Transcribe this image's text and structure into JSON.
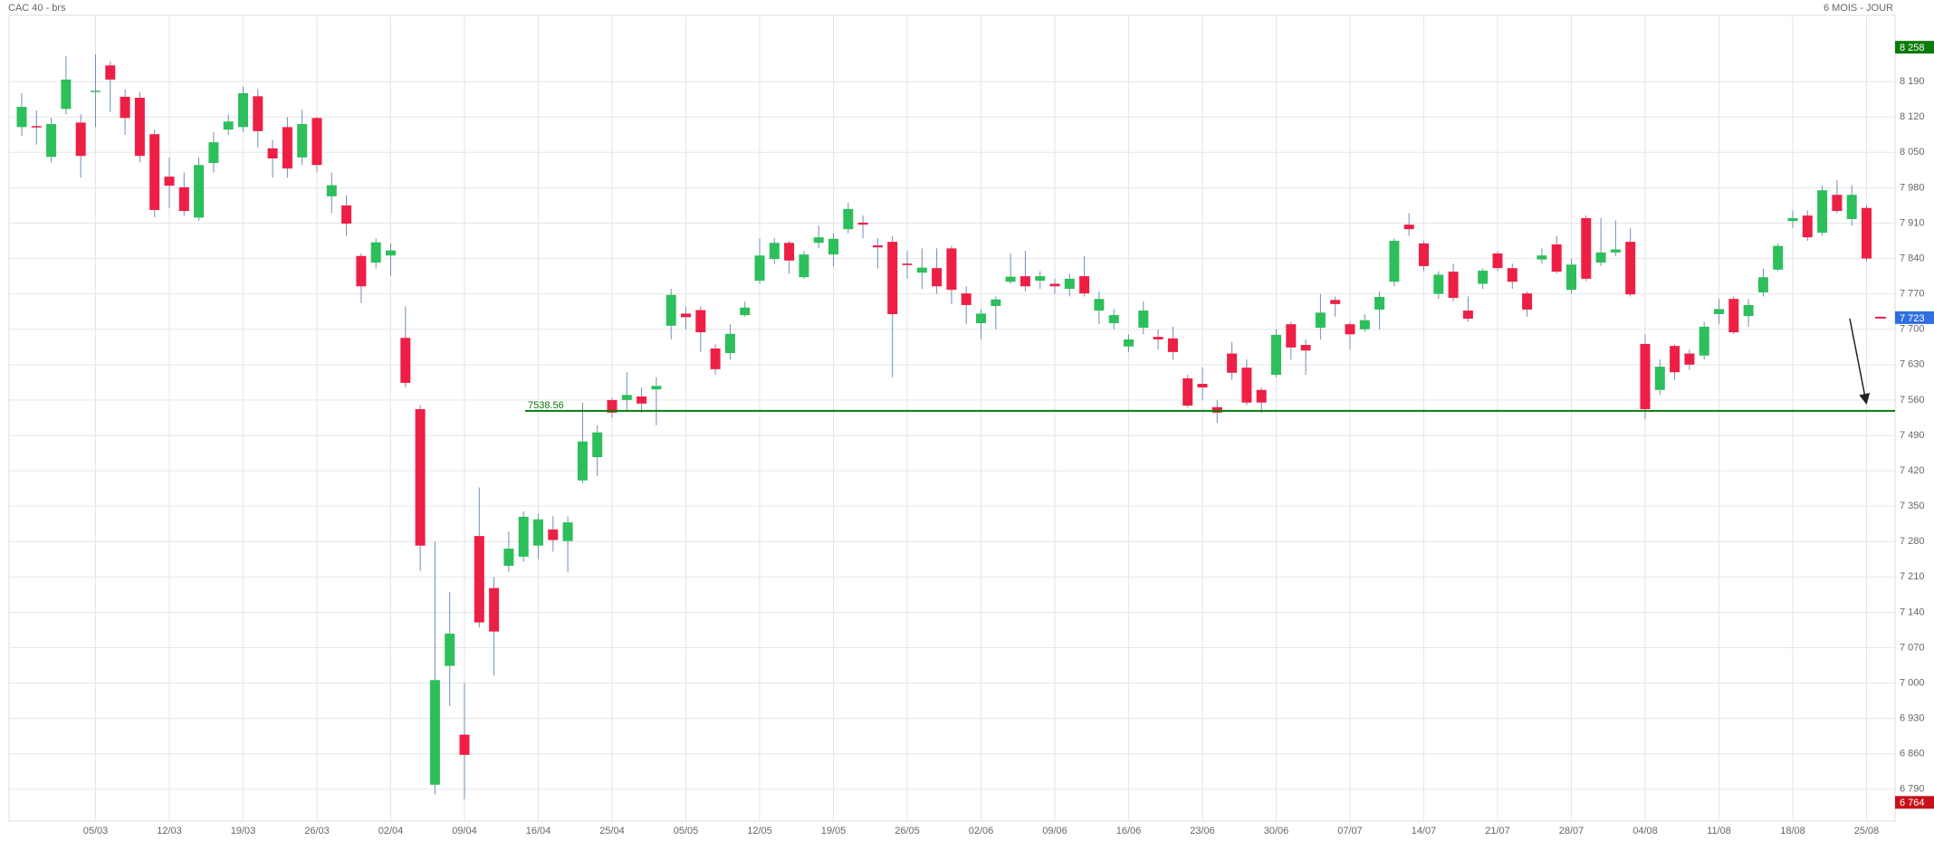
{
  "chart_data": {
    "type": "candlestick",
    "title": "CAC 40 - brs",
    "subtitle": "6 MOIS - JOUR",
    "up_color": "#2dbf5b",
    "down_color": "#ee1f45",
    "wick_color": "#6f8fb5",
    "grid": true,
    "categories": [
      null,
      null,
      null,
      null,
      null,
      "05/03",
      null,
      null,
      null,
      null,
      "12/03",
      null,
      null,
      null,
      null,
      "19/03",
      null,
      null,
      null,
      null,
      "26/03",
      null,
      null,
      null,
      null,
      "02/04",
      null,
      null,
      null,
      null,
      "09/04",
      null,
      null,
      null,
      null,
      "16/04",
      null,
      null,
      null,
      null,
      "25/04",
      null,
      null,
      null,
      null,
      "05/05",
      null,
      null,
      null,
      null,
      "12/05",
      null,
      null,
      null,
      null,
      "19/05",
      null,
      null,
      null,
      null,
      "26/05",
      null,
      null,
      null,
      null,
      "02/06",
      null,
      null,
      null,
      null,
      "09/06",
      null,
      null,
      null,
      null,
      "16/06",
      null,
      null,
      null,
      null,
      "23/06",
      null,
      null,
      null,
      null,
      "30/06",
      null,
      null,
      null,
      null,
      "07/07",
      null,
      null,
      null,
      null,
      "14/07",
      null,
      null,
      null,
      null,
      "21/07",
      null,
      null,
      null,
      null,
      "28/07",
      null,
      null,
      null,
      null,
      "04/08",
      null,
      null,
      null,
      null,
      "11/08",
      null,
      null,
      null,
      null,
      "18/08",
      null,
      null,
      null,
      null,
      "25/08"
    ],
    "open": [
      8100,
      8102,
      8041,
      8136,
      8109,
      8170,
      8222,
      8160,
      8158,
      8086,
      8002,
      7981,
      7921,
      8029,
      8095,
      8100,
      8161,
      8058,
      8100,
      8040,
      8118,
      7963,
      7945,
      7845,
      7832,
      7846,
      7683,
      7542,
      6799,
      7034,
      6898,
      7291,
      7188,
      7232,
      7250,
      7272,
      7304,
      7281,
      7401,
      7447,
      7560,
      7560,
      7567,
      7581,
      7707,
      7731,
      7738,
      7662,
      7653,
      7728,
      7796,
      7839,
      7871,
      7803,
      7871,
      7848,
      7898,
      7911,
      7866,
      7873,
      7830,
      7812,
      7821,
      7860,
      7771,
      7712,
      7746,
      7794,
      7805,
      7796,
      7790,
      7780,
      7805,
      7737,
      7712,
      7666,
      7703,
      7685,
      7682,
      7603,
      7592,
      7546,
      7652,
      7624,
      7580,
      7610,
      7710,
      7669,
      7703,
      7758,
      7710,
      7700,
      7739,
      7794,
      7907,
      7870,
      7770,
      7814,
      7737,
      7790,
      7850,
      7821,
      7771,
      7838,
      7868,
      7778,
      7920,
      7832,
      7852,
      7873,
      7671,
      7580,
      7667,
      7652,
      7648,
      7730,
      7760,
      7726,
      7773,
      7818,
      7914,
      7925,
      7891,
      7966,
      7918,
      7940
    ],
    "high": [
      8167,
      8133,
      8118,
      8240,
      8125,
      8244,
      8230,
      8175,
      8170,
      8095,
      8040,
      8010,
      8040,
      8090,
      8125,
      8180,
      8175,
      8075,
      8120,
      8135,
      8120,
      8010,
      7965,
      7850,
      7880,
      7870,
      7745,
      7550,
      7280,
      7180,
      7000,
      7387,
      7210,
      7300,
      7340,
      7335,
      7330,
      7330,
      7555,
      7510,
      7565,
      7615,
      7585,
      7605,
      7780,
      7745,
      7745,
      7670,
      7710,
      7755,
      7880,
      7880,
      7875,
      7855,
      7905,
      7890,
      7950,
      7925,
      7880,
      7885,
      7855,
      7860,
      7860,
      7865,
      7785,
      7740,
      7765,
      7850,
      7855,
      7815,
      7800,
      7810,
      7845,
      7775,
      7740,
      7690,
      7755,
      7700,
      7705,
      7610,
      7625,
      7560,
      7675,
      7640,
      7585,
      7700,
      7715,
      7680,
      7770,
      7765,
      7715,
      7730,
      7775,
      7880,
      7930,
      7875,
      7815,
      7830,
      7765,
      7820,
      7855,
      7830,
      7775,
      7860,
      7885,
      7840,
      7925,
      7920,
      7915,
      7900,
      7690,
      7640,
      7670,
      7660,
      7715,
      7760,
      7765,
      7760,
      7820,
      7870,
      7935,
      7935,
      7985,
      7995,
      7985,
      7945
    ],
    "low": [
      8083,
      8065,
      8030,
      8125,
      8000,
      8100,
      8130,
      8085,
      8030,
      7922,
      7940,
      7925,
      7915,
      8010,
      8085,
      8090,
      8060,
      8000,
      8000,
      8025,
      8010,
      7930,
      7885,
      7752,
      7820,
      7805,
      7585,
      7222,
      6780,
      6955,
      6770,
      7110,
      7015,
      7220,
      7240,
      7245,
      7260,
      7220,
      7395,
      7410,
      7525,
      7540,
      7535,
      7510,
      7680,
      7700,
      7655,
      7610,
      7640,
      7725,
      7790,
      7830,
      7810,
      7800,
      7860,
      7825,
      7890,
      7880,
      7820,
      7605,
      7800,
      7780,
      7770,
      7750,
      7710,
      7680,
      7700,
      7790,
      7775,
      7780,
      7770,
      7765,
      7765,
      7710,
      7700,
      7655,
      7690,
      7660,
      7640,
      7545,
      7560,
      7515,
      7600,
      7550,
      7535,
      7605,
      7640,
      7610,
      7680,
      7725,
      7660,
      7695,
      7700,
      7785,
      7885,
      7815,
      7760,
      7755,
      7715,
      7780,
      7815,
      7780,
      7725,
      7830,
      7810,
      7770,
      7795,
      7825,
      7845,
      7765,
      7522,
      7570,
      7600,
      7620,
      7640,
      7710,
      7690,
      7705,
      7765,
      7815,
      7900,
      7875,
      7885,
      7930,
      7905,
      7835
    ],
    "close": [
      8140,
      8100,
      8106,
      8194,
      8043,
      8172,
      8194,
      8118,
      8043,
      7936,
      7984,
      7934,
      8025,
      8070,
      8111,
      8167,
      8092,
      8038,
      8018,
      8106,
      8025,
      7985,
      7909,
      7785,
      7872,
      7856,
      7594,
      7272,
      7006,
      7098,
      6858,
      7120,
      7102,
      7266,
      7329,
      7324,
      7283,
      7318,
      7478,
      7496,
      7535,
      7570,
      7553,
      7588,
      7768,
      7724,
      7694,
      7621,
      7691,
      7743,
      7846,
      7871,
      7836,
      7848,
      7882,
      7879,
      7938,
      7907,
      7862,
      7730,
      7827,
      7822,
      7785,
      7778,
      7748,
      7731,
      7759,
      7804,
      7785,
      7805,
      7785,
      7800,
      7771,
      7760,
      7728,
      7680,
      7737,
      7680,
      7655,
      7549,
      7585,
      7535,
      7614,
      7555,
      7555,
      7689,
      7664,
      7658,
      7733,
      7750,
      7690,
      7718,
      7764,
      7875,
      7898,
      7825,
      7808,
      7762,
      7721,
      7816,
      7821,
      7794,
      7739,
      7846,
      7814,
      7828,
      7800,
      7852,
      7858,
      7769,
      7542,
      7626,
      7615,
      7630,
      7705,
      7740,
      7694,
      7748,
      7803,
      7865,
      7920,
      7882,
      7975,
      7934,
      7966,
      7840
    ],
    "ylim": [
      6727,
      8321
    ],
    "yticks": [
      {
        "value": 6790,
        "label": "6 790"
      },
      {
        "value": 6860,
        "label": "6 860"
      },
      {
        "value": 6930,
        "label": "6 930"
      },
      {
        "value": 7000,
        "label": "7 000"
      },
      {
        "value": 7070,
        "label": "7 070"
      },
      {
        "value": 7140,
        "label": "7 140"
      },
      {
        "value": 7210,
        "label": "7 210"
      },
      {
        "value": 7280,
        "label": "7 280"
      },
      {
        "value": 7350,
        "label": "7 350"
      },
      {
        "value": 7420,
        "label": "7 420"
      },
      {
        "value": 7490,
        "label": "7 490"
      },
      {
        "value": 7560,
        "label": "7 560"
      },
      {
        "value": 7630,
        "label": "7 630"
      },
      {
        "value": 7700,
        "label": "7 700"
      },
      {
        "value": 7770,
        "label": "7 770"
      },
      {
        "value": 7840,
        "label": "7 840"
      },
      {
        "value": 7910,
        "label": "7 910"
      },
      {
        "value": 7980,
        "label": "7 980"
      },
      {
        "value": 8050,
        "label": "8 050"
      },
      {
        "value": 8120,
        "label": "8 120"
      },
      {
        "value": 8190,
        "label": "8 190"
      }
    ],
    "hline": {
      "value": 7538.56,
      "color": "#0a7a0a"
    },
    "markers": [
      {
        "value": 8258,
        "label": "8 258",
        "color": "#0a7a0a"
      },
      {
        "value": 7723,
        "label": "7 723",
        "color": "#2f6fe0"
      },
      {
        "value": 6764,
        "label": "6 764",
        "color": "#c8101a"
      }
    ]
  }
}
